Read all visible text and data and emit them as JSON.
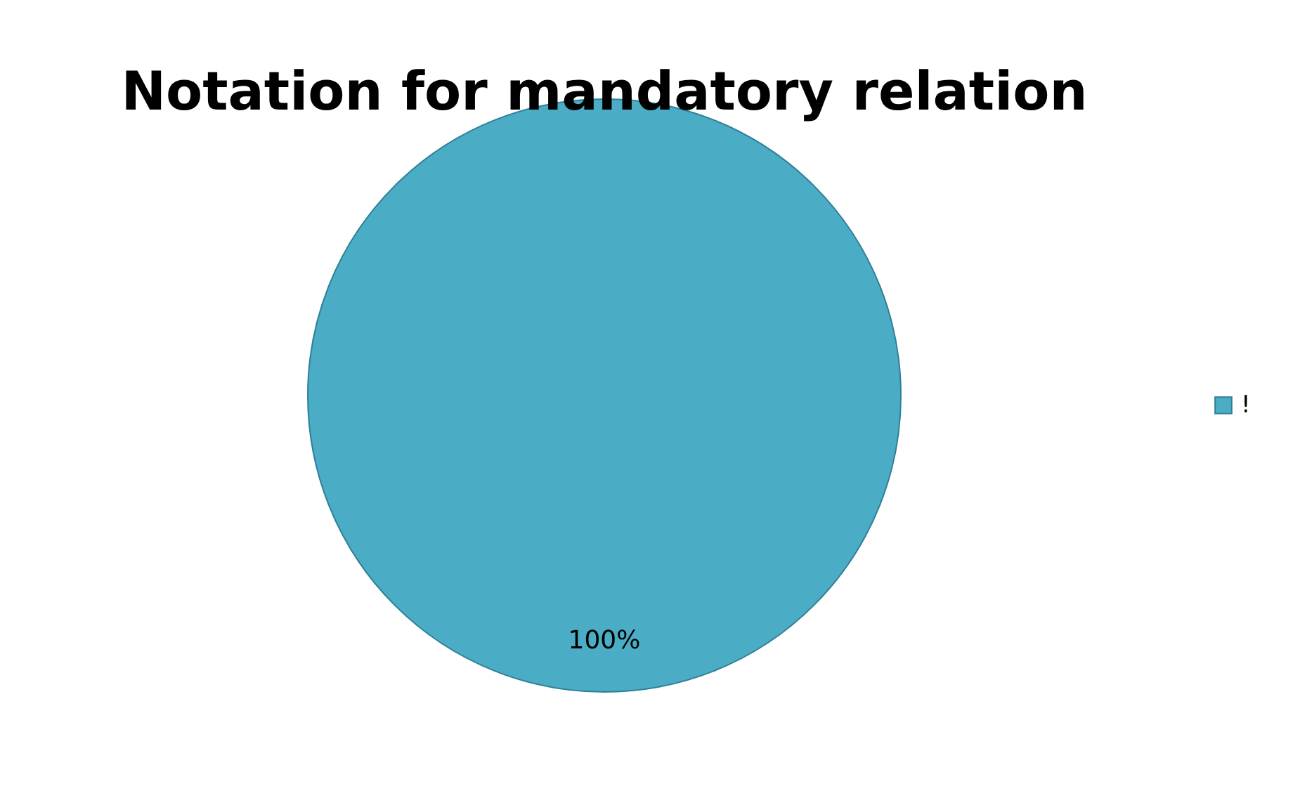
{
  "chart_data": {
    "type": "pie",
    "title": "Notation for mandatory relation",
    "categories": [
      "!"
    ],
    "values": [
      100
    ],
    "colors": [
      "#4bacc6"
    ],
    "value_labels": [
      "100%"
    ],
    "legend": "right"
  }
}
